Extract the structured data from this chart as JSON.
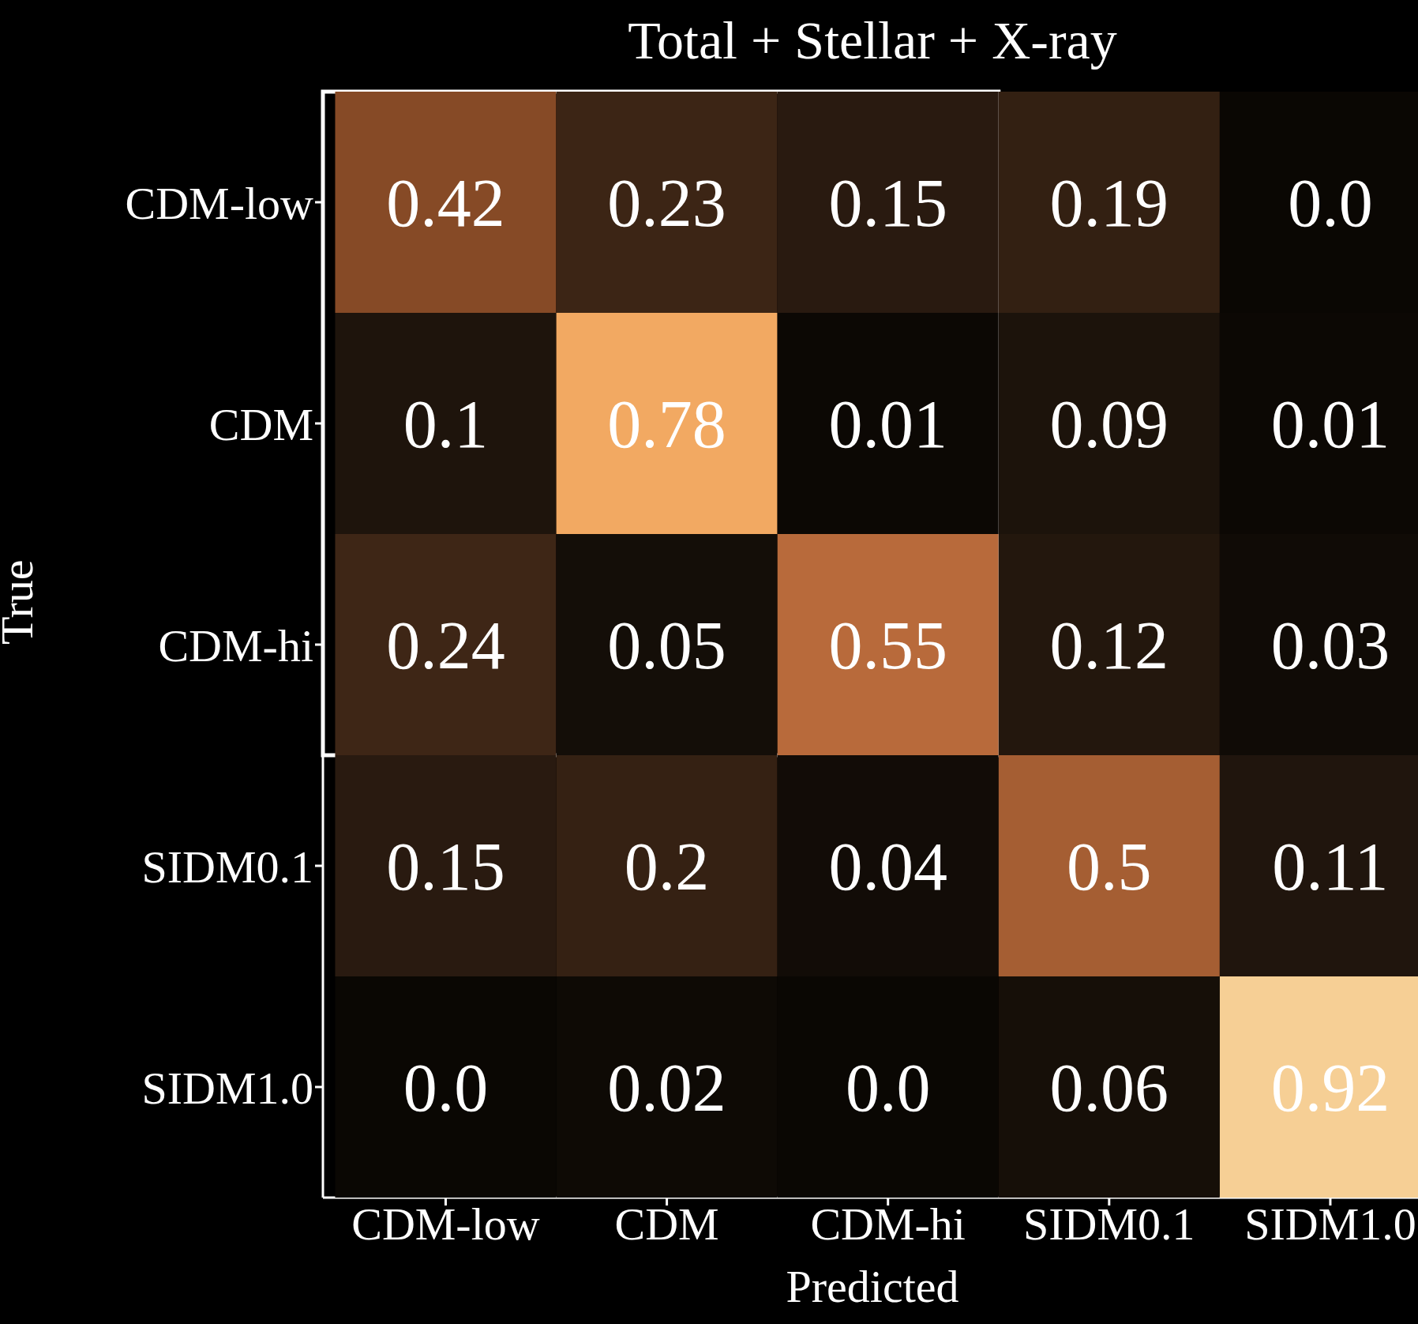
{
  "chart_data": {
    "type": "heatmap",
    "title": "Total + Stellar + X-ray",
    "xlabel": "Predicted",
    "ylabel": "True",
    "categories": [
      "CDM-low",
      "CDM",
      "CDM-hi",
      "SIDM0.1",
      "SIDM1.0"
    ],
    "y_categories": [
      "CDM-low",
      "CDM",
      "CDM-hi",
      "SIDM0.1",
      "SIDM1.0"
    ],
    "cells": [
      [
        0.42,
        0.23,
        0.15,
        0.19,
        0.0
      ],
      [
        0.1,
        0.78,
        0.01,
        0.09,
        0.01
      ],
      [
        0.24,
        0.05,
        0.55,
        0.12,
        0.03
      ],
      [
        0.15,
        0.2,
        0.04,
        0.5,
        0.11
      ],
      [
        0.0,
        0.02,
        0.0,
        0.06,
        0.92
      ]
    ],
    "cell_labels": [
      [
        "0.42",
        "0.23",
        "0.15",
        "0.19",
        "0.0"
      ],
      [
        "0.1",
        "0.78",
        "0.01",
        "0.09",
        "0.01"
      ],
      [
        "0.24",
        "0.05",
        "0.55",
        "0.12",
        "0.03"
      ],
      [
        "0.15",
        "0.2",
        "0.04",
        "0.5",
        "0.11"
      ],
      [
        "0.0",
        "0.02",
        "0.0",
        "0.06",
        "0.92"
      ]
    ],
    "data_labels": true
  }
}
